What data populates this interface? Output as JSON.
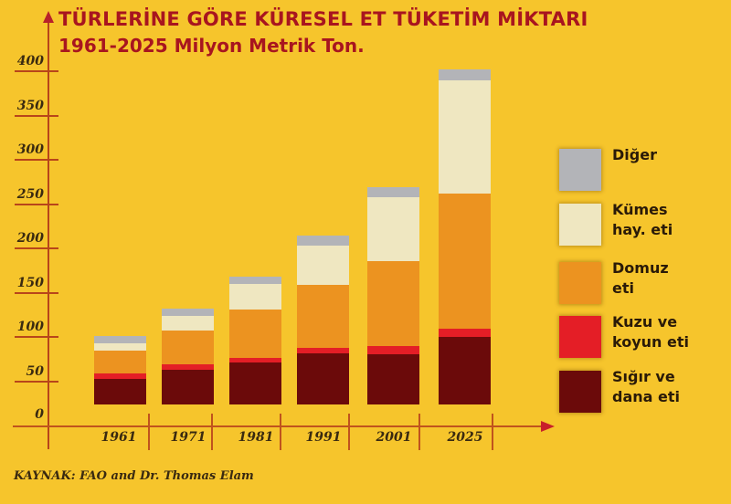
{
  "header": {
    "title": "TÜRLERİNE GÖRE KÜRESEL ET TÜKETİM MİKTARI",
    "subtitle": "1961-2025 Milyon Metrik Ton."
  },
  "footer": {
    "source": "KAYNAK: FAO and Dr. Thomas Elam"
  },
  "colors": {
    "background": "#f6c52c",
    "title": "#a8151f",
    "diger": "#b3b4b8",
    "kumes": "#efe7c1",
    "domuz": "#ec9320",
    "kuzu": "#e41e26",
    "sigir": "#6b0a0a"
  },
  "legend": [
    {
      "label": "Diğer",
      "color": "#b3b4b8"
    },
    {
      "label": "Kümes\nhay. eti",
      "color": "#efe7c1"
    },
    {
      "label": "Domuz\neti",
      "color": "#ec9320"
    },
    {
      "label": "Kuzu ve\nkoyun eti",
      "color": "#e41e26"
    },
    {
      "label": "Sığır ve\ndana eti",
      "color": "#6b0a0a"
    }
  ],
  "chart_data": {
    "type": "bar",
    "stacked": true,
    "title": "TÜRLERİNE GÖRE KÜRESEL ET TÜKETİM MİKTARI",
    "subtitle": "1961-2025 Milyon Metrik Ton.",
    "xlabel": "",
    "ylabel": "Milyon Metrik Ton",
    "ylim": [
      0,
      400
    ],
    "yticks": [
      0,
      50,
      100,
      150,
      200,
      250,
      300,
      350,
      400
    ],
    "grid": false,
    "legend_position": "right",
    "categories": [
      "1961",
      "1971",
      "1981",
      "1991",
      "2001",
      "2025"
    ],
    "series": [
      {
        "name": "Sığır ve dana eti",
        "color": "#6b0a0a",
        "values": [
          53,
          63,
          71,
          81,
          80,
          100
        ]
      },
      {
        "name": "Kuzu ve koyun eti",
        "color": "#e41e26",
        "values": [
          6,
          6,
          5,
          7,
          10,
          9
        ]
      },
      {
        "name": "Domuz eti",
        "color": "#ec9320",
        "values": [
          26,
          38,
          55,
          71,
          96,
          153
        ]
      },
      {
        "name": "Kümes hay. eti",
        "color": "#efe7c1",
        "values": [
          8,
          17,
          29,
          44,
          72,
          128
        ]
      },
      {
        "name": "Diğer",
        "color": "#b3b4b8",
        "values": [
          8,
          8,
          8,
          11,
          11,
          12
        ]
      }
    ],
    "totals": [
      101,
      132,
      168,
      214,
      269,
      402
    ],
    "source": "KAYNAK: FAO and Dr. Thomas Elam"
  }
}
